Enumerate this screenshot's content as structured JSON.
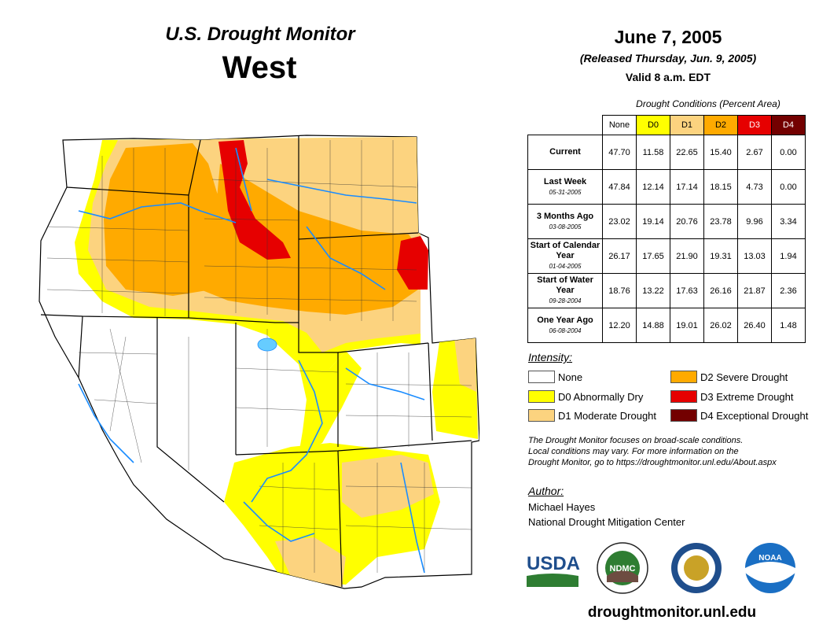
{
  "header": {
    "title": "U.S. Drought Monitor",
    "region": "West",
    "date": "June 7, 2005",
    "released": "(Released Thursday, Jun. 9, 2005)",
    "valid": "Valid 8 a.m. EDT"
  },
  "table": {
    "caption": "Drought Conditions (Percent Area)",
    "columns": [
      "None",
      "D0",
      "D1",
      "D2",
      "D3",
      "D4"
    ],
    "rows": [
      {
        "label": "Current",
        "sub": "",
        "values": [
          "47.70",
          "11.58",
          "22.65",
          "15.40",
          "2.67",
          "0.00"
        ]
      },
      {
        "label": "Last Week",
        "sub": "05-31-2005",
        "values": [
          "47.84",
          "12.14",
          "17.14",
          "18.15",
          "4.73",
          "0.00"
        ]
      },
      {
        "label": "3 Months Ago",
        "sub": "03-08-2005",
        "values": [
          "23.02",
          "19.14",
          "20.76",
          "23.78",
          "9.96",
          "3.34"
        ]
      },
      {
        "label": "Start of Calendar Year",
        "sub": "01-04-2005",
        "values": [
          "26.17",
          "17.65",
          "21.90",
          "19.31",
          "13.03",
          "1.94"
        ]
      },
      {
        "label": "Start of Water Year",
        "sub": "09-28-2004",
        "values": [
          "18.76",
          "13.22",
          "17.63",
          "26.16",
          "21.87",
          "2.36"
        ]
      },
      {
        "label": "One Year Ago",
        "sub": "06-08-2004",
        "values": [
          "12.20",
          "14.88",
          "19.01",
          "26.02",
          "26.40",
          "1.48"
        ]
      }
    ]
  },
  "legend": {
    "title": "Intensity:",
    "items": [
      {
        "label": "None",
        "color": "#ffffff"
      },
      {
        "label": "D0 Abnormally Dry",
        "color": "#ffff00"
      },
      {
        "label": "D1 Moderate Drought",
        "color": "#fcd37f"
      },
      {
        "label": "D2 Severe Drought",
        "color": "#ffaa00"
      },
      {
        "label": "D3 Extreme Drought",
        "color": "#e60000"
      },
      {
        "label": "D4 Exceptional Drought",
        "color": "#730000"
      }
    ]
  },
  "note": {
    "line1": "The Drought Monitor focuses on broad-scale conditions.",
    "line2": "Local conditions may vary. For more information on the",
    "line3": "Drought Monitor, go to https://droughtmonitor.unl.edu/About.aspx"
  },
  "author": {
    "title": "Author:",
    "name": "Michael Hayes",
    "org": "National Drought Mitigation Center"
  },
  "logos": {
    "usda": "USDA",
    "ndmc": "NDMC",
    "noaa": "NOAA"
  },
  "footer": {
    "url": "droughtmonitor.unl.edu"
  }
}
